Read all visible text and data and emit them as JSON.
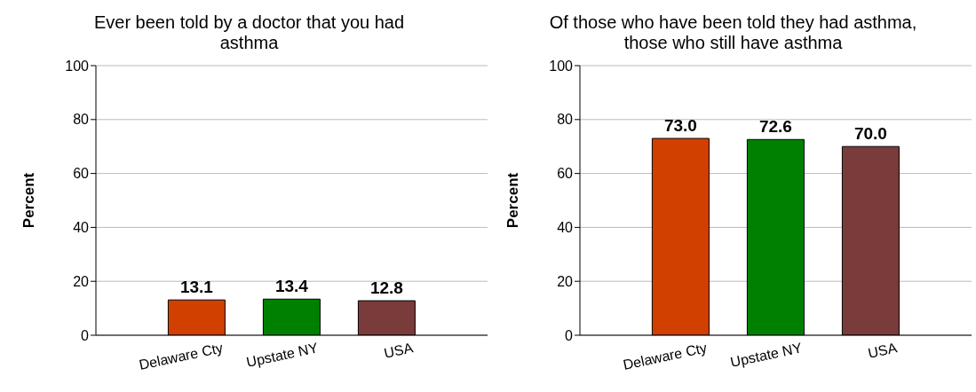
{
  "chart_data": [
    {
      "type": "bar",
      "title": "Ever been told by a doctor that you had asthma",
      "ylabel": "Percent",
      "categories": [
        "Delaware Cty",
        "Upstate NY",
        "USA"
      ],
      "values": [
        13.1,
        13.4,
        12.8
      ],
      "value_labels": [
        "13.1",
        "13.4",
        "12.8"
      ],
      "colors": [
        "#d24000",
        "#008000",
        "#7a3b3b"
      ],
      "ylim": [
        0,
        100
      ],
      "yticks": [
        0,
        20,
        40,
        60,
        80,
        100
      ],
      "grid": "y",
      "legend": false
    },
    {
      "type": "bar",
      "title": "Of those who have been told they had asthma, those who still have asthma",
      "ylabel": "Percent",
      "categories": [
        "Delaware Cty",
        "Upstate NY",
        "USA"
      ],
      "values": [
        73.0,
        72.6,
        70.0
      ],
      "value_labels": [
        "73.0",
        "72.6",
        "70.0"
      ],
      "colors": [
        "#d24000",
        "#008000",
        "#7a3b3b"
      ],
      "ylim": [
        0,
        100
      ],
      "yticks": [
        0,
        20,
        40,
        60,
        80,
        100
      ],
      "grid": "y",
      "legend": false
    }
  ]
}
